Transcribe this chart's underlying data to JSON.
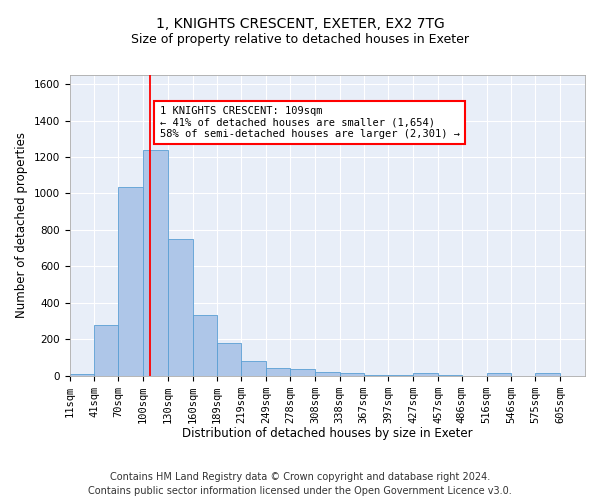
{
  "title1": "1, KNIGHTS CRESCENT, EXETER, EX2 7TG",
  "title2": "Size of property relative to detached houses in Exeter",
  "xlabel": "Distribution of detached houses by size in Exeter",
  "ylabel": "Number of detached properties",
  "footnote1": "Contains HM Land Registry data © Crown copyright and database right 2024.",
  "footnote2": "Contains public sector information licensed under the Open Government Licence v3.0.",
  "annotation_line1": "1 KNIGHTS CRESCENT: 109sqm",
  "annotation_line2": "← 41% of detached houses are smaller (1,654)",
  "annotation_line3": "58% of semi-detached houses are larger (2,301) →",
  "bar_left_edges": [
    11,
    41,
    70,
    100,
    130,
    160,
    189,
    219,
    249,
    278,
    308,
    338,
    367,
    397,
    427,
    457,
    486,
    516,
    546,
    575
  ],
  "bar_widths": [
    30,
    29,
    30,
    30,
    30,
    29,
    30,
    30,
    29,
    30,
    30,
    29,
    30,
    30,
    30,
    29,
    30,
    30,
    29,
    30
  ],
  "bar_heights": [
    10,
    280,
    1035,
    1240,
    750,
    330,
    180,
    80,
    43,
    38,
    22,
    15,
    5,
    5,
    15,
    2,
    0,
    15,
    0,
    15
  ],
  "bar_color": "#aec6e8",
  "bar_edgecolor": "#5a9fd4",
  "red_line_x": 109,
  "ylim": [
    0,
    1650
  ],
  "yticks": [
    0,
    200,
    400,
    600,
    800,
    1000,
    1200,
    1400,
    1600
  ],
  "xtick_labels": [
    "11sqm",
    "41sqm",
    "70sqm",
    "100sqm",
    "130sqm",
    "160sqm",
    "189sqm",
    "219sqm",
    "249sqm",
    "278sqm",
    "308sqm",
    "338sqm",
    "367sqm",
    "397sqm",
    "427sqm",
    "457sqm",
    "486sqm",
    "516sqm",
    "546sqm",
    "575sqm",
    "605sqm"
  ],
  "xtick_positions": [
    11,
    41,
    70,
    100,
    130,
    160,
    189,
    219,
    249,
    278,
    308,
    338,
    367,
    397,
    427,
    457,
    486,
    516,
    546,
    575,
    605
  ],
  "background_color": "#e8eef8",
  "grid_color": "#ffffff",
  "title1_fontsize": 10,
  "title2_fontsize": 9,
  "axis_label_fontsize": 8.5,
  "tick_fontsize": 7.5,
  "footnote_fontsize": 7
}
